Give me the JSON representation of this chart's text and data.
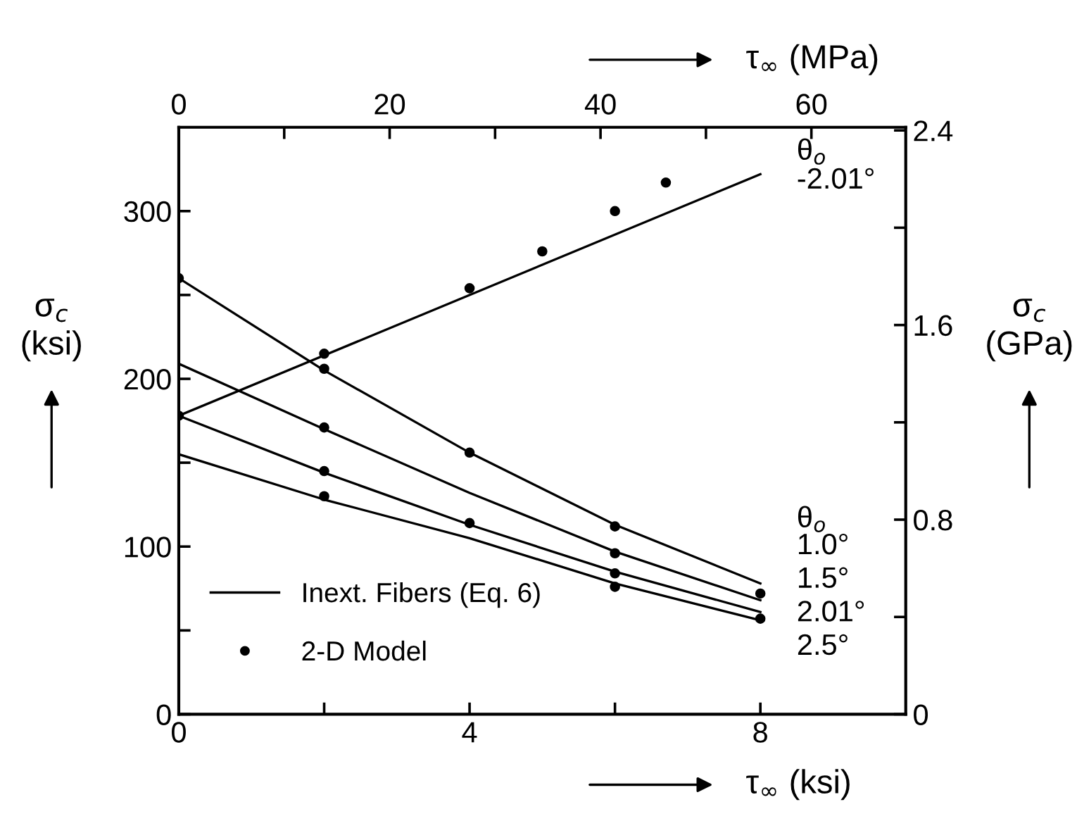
{
  "chart_data": {
    "type": "line",
    "xlabel": "τ$_{∞}$ (ksi)",
    "x2label": "τ$_{∞}$ (MPa)",
    "ylabel": "σ$_{c}$\n(ksi)",
    "y2label": "σ$_{c}$\n(GPa)",
    "legend_title": "θ$_{o}$",
    "xlim": [
      0,
      10
    ],
    "xticks": [
      0,
      {
        "value": 2,
        "label": null
      },
      4,
      {
        "value": 6,
        "label": null
      },
      8
    ],
    "x2lim": [
      0,
      68.95
    ],
    "x2ticks": [
      0,
      {
        "value": 10,
        "label": null
      },
      20,
      {
        "value": 30,
        "label": null
      },
      40,
      {
        "value": 50,
        "label": null
      },
      60
    ],
    "ylim": [
      0,
      350
    ],
    "yticks": [
      0,
      {
        "value": 50,
        "label": null
      },
      100,
      {
        "value": 150,
        "label": null
      },
      200,
      {
        "value": 250,
        "label": null
      },
      300
    ],
    "y2lim": [
      0,
      2.413
    ],
    "y2ticks": [
      0,
      {
        "value": 0.4,
        "label": null
      },
      0.8,
      {
        "value": 1.2,
        "label": null
      },
      1.6,
      {
        "value": 2.0,
        "label": null
      },
      2.4
    ],
    "series": [
      {
        "name": "-2.01°",
        "color": "#000000",
        "x": [
          0,
          8
        ],
        "values": [
          178,
          322
        ]
      },
      {
        "name": "1.0°",
        "color": "#000000",
        "x": [
          0,
          2,
          4,
          6,
          8
        ],
        "values": [
          260,
          205,
          156,
          113,
          78
        ]
      },
      {
        "name": "1.5°",
        "color": "#000000",
        "x": [
          0,
          2,
          4,
          6,
          8
        ],
        "values": [
          209,
          170,
          132,
          97,
          68
        ]
      },
      {
        "name": "2.01°",
        "color": "#000000",
        "x": [
          0,
          2,
          4,
          6,
          8
        ],
        "values": [
          178,
          144,
          113,
          85,
          61
        ]
      },
      {
        "name": "2.5°",
        "color": "#000000",
        "x": [
          0,
          2,
          4,
          6,
          8
        ],
        "values": [
          155,
          128,
          105,
          78,
          56
        ]
      },
      {
        "name": "2-D Model",
        "type": "scatter",
        "color": "#000000",
        "marker": "circle",
        "x": [
          0,
          2,
          4,
          5,
          6,
          6.7,
          0,
          2,
          4,
          6,
          8,
          2,
          6,
          2,
          4,
          6,
          2,
          6,
          8
        ],
        "values": [
          178,
          215,
          254,
          276,
          300,
          317,
          260,
          206,
          156,
          112,
          72,
          171,
          96,
          145,
          114,
          84,
          130,
          76,
          57
        ]
      }
    ],
    "annotations": [
      "Inext. Fibers (Eq. 6)"
    ],
    "legend": "bottom left",
    "grid": false,
    "line_style": "solid"
  }
}
